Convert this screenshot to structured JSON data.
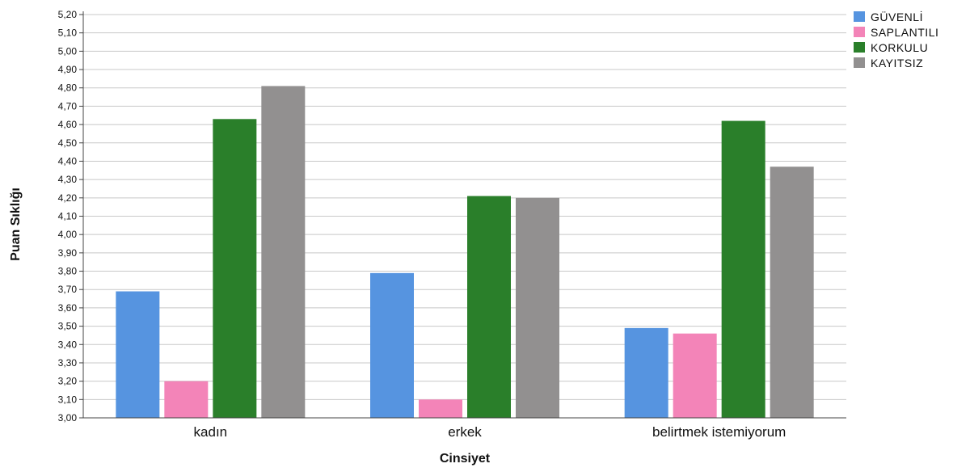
{
  "chart_data": {
    "type": "bar",
    "xlabel": "Cinsiyet",
    "ylabel": "Puan Sıklığı",
    "ylim": [
      3.0,
      5.2
    ],
    "ytick_step": 0.1,
    "ytick_decimals": 2,
    "ytick_decimal_separator": ",",
    "grid": true,
    "legend_position": "top-right",
    "categories": [
      "kadın",
      "erkek",
      "belirtmek istemiyorum"
    ],
    "series": [
      {
        "name": "GÜVENLİ",
        "color": "#5694e0",
        "values": [
          3.69,
          3.79,
          3.49
        ]
      },
      {
        "name": "SAPLANTILI",
        "color": "#f384b8",
        "values": [
          3.2,
          3.1,
          3.46
        ]
      },
      {
        "name": "KORKULU",
        "color": "#2a7f2a",
        "values": [
          4.63,
          4.21,
          4.62
        ]
      },
      {
        "name": "KAYITSIZ",
        "color": "#929090",
        "values": [
          4.81,
          4.2,
          4.37
        ]
      }
    ]
  }
}
